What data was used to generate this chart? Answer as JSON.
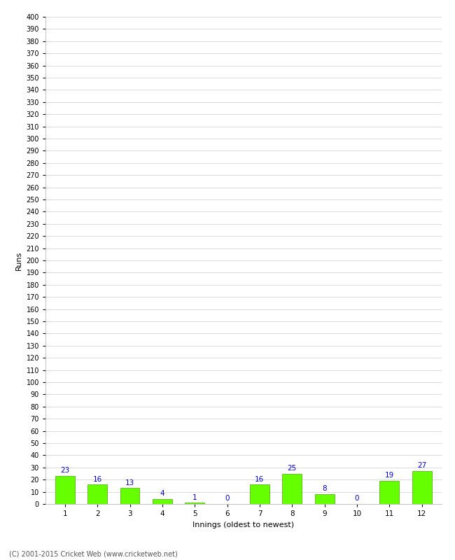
{
  "categories": [
    1,
    2,
    3,
    4,
    5,
    6,
    7,
    8,
    9,
    10,
    11,
    12
  ],
  "values": [
    23,
    16,
    13,
    4,
    1,
    0,
    16,
    25,
    8,
    0,
    19,
    27
  ],
  "bar_color": "#66ff00",
  "bar_edge_color": "#44aa00",
  "label_color": "#0000cc",
  "ylabel": "Runs",
  "xlabel": "Innings (oldest to newest)",
  "ylim": [
    0,
    400
  ],
  "ytick_step": 10,
  "background_color": "#ffffff",
  "grid_color": "#cccccc",
  "footer": "(C) 2001-2015 Cricket Web (www.cricketweb.net)"
}
